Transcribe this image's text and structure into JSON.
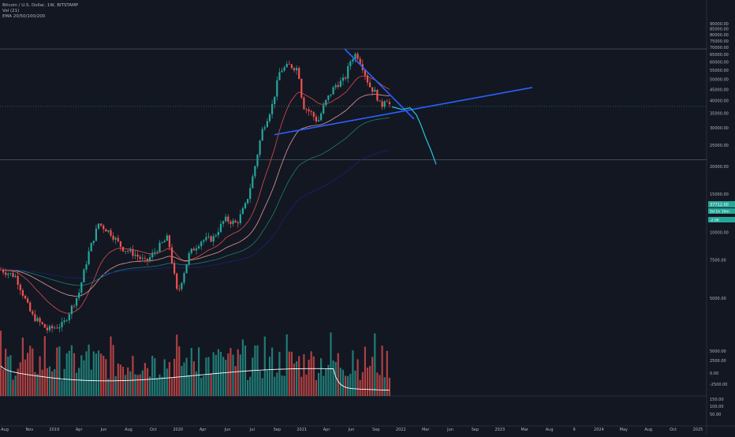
{
  "legend": {
    "line1": "Bitcoin / U.S. Dollar, 1W, BITSTAMP",
    "line2": "Vol (21)",
    "line3": "EMA 20/50/100/200"
  },
  "price_badges": {
    "last_price": "37712.00",
    "countdown": "5d 1h 19m",
    "volume_badge": "-2.0K"
  },
  "chart_data": {
    "type": "candlestick",
    "price_scale": "log",
    "ylim": [
      3000,
      90000
    ],
    "price_ticks": [
      "90000.00",
      "85000.00",
      "80000.00",
      "75000.00",
      "70000.00",
      "65000.00",
      "60000.00",
      "55000.00",
      "50000.00",
      "45000.00",
      "40000.00",
      "35000.00",
      "30000.00",
      "25000.00",
      "20000.00",
      "15000.00",
      "12500.00",
      "10000.00",
      "7500.00",
      "5000.00"
    ],
    "indicator_ticks": [
      "5000.00",
      "2500.00",
      "0.00",
      "-2500.00"
    ],
    "bottom_ticks": [
      "150.00",
      "100.00",
      "50.00"
    ],
    "x_ticks": [
      "Aug",
      "Nov",
      "2019",
      "Apr",
      "Jun",
      "Aug",
      "Oct",
      "2020",
      "Apr",
      "Jun",
      "Jul",
      "Sep",
      "2021",
      "Apr",
      "Jun",
      "Sep",
      "2022",
      "Mar",
      "Jun",
      "Sep",
      "2023",
      "Mar",
      "Aug",
      "9",
      "2024",
      "May",
      "Aug",
      "Oct",
      "2025"
    ],
    "price_anchors": [
      {
        "x": 0,
        "price": 6800
      },
      {
        "x": 20,
        "price": 6300
      },
      {
        "x": 40,
        "price": 4200
      },
      {
        "x": 60,
        "price": 3600
      },
      {
        "x": 80,
        "price": 3800
      },
      {
        "x": 100,
        "price": 5300
      },
      {
        "x": 112,
        "price": 8000
      },
      {
        "x": 125,
        "price": 11000
      },
      {
        "x": 140,
        "price": 10000
      },
      {
        "x": 155,
        "price": 8500
      },
      {
        "x": 170,
        "price": 8000
      },
      {
        "x": 185,
        "price": 7300
      },
      {
        "x": 200,
        "price": 8500
      },
      {
        "x": 213,
        "price": 9500
      },
      {
        "x": 225,
        "price": 5200
      },
      {
        "x": 240,
        "price": 8000
      },
      {
        "x": 255,
        "price": 9200
      },
      {
        "x": 270,
        "price": 9400
      },
      {
        "x": 285,
        "price": 11500
      },
      {
        "x": 300,
        "price": 11000
      },
      {
        "x": 312,
        "price": 13500
      },
      {
        "x": 322,
        "price": 19000
      },
      {
        "x": 332,
        "price": 29000
      },
      {
        "x": 345,
        "price": 38000
      },
      {
        "x": 355,
        "price": 55000
      },
      {
        "x": 367,
        "price": 58000
      },
      {
        "x": 378,
        "price": 56000
      },
      {
        "x": 384,
        "price": 38000
      },
      {
        "x": 395,
        "price": 35000
      },
      {
        "x": 403,
        "price": 32000
      },
      {
        "x": 412,
        "price": 39000
      },
      {
        "x": 425,
        "price": 47000
      },
      {
        "x": 437,
        "price": 50000
      },
      {
        "x": 445,
        "price": 62000
      },
      {
        "x": 452,
        "price": 66000
      },
      {
        "x": 460,
        "price": 57000
      },
      {
        "x": 468,
        "price": 47000
      },
      {
        "x": 477,
        "price": 43000
      },
      {
        "x": 483,
        "price": 37000
      },
      {
        "x": 489,
        "price": 42000
      },
      {
        "x": 495,
        "price": 37712
      }
    ],
    "overlays": {
      "descending_trendline": [
        {
          "x": 437,
          "price": 69000
        },
        {
          "x": 525,
          "price": 33000
        }
      ],
      "ascending_trendline": [
        {
          "x": 348,
          "price": 28000
        },
        {
          "x": 675,
          "price": 46000
        }
      ],
      "projection_path": [
        {
          "x": 497,
          "price": 37500
        },
        {
          "x": 510,
          "price": 36500
        },
        {
          "x": 520,
          "price": 37200
        },
        {
          "x": 528,
          "price": 34500
        },
        {
          "x": 533,
          "price": 31500
        },
        {
          "x": 540,
          "price": 27000
        },
        {
          "x": 547,
          "price": 23500
        },
        {
          "x": 553,
          "price": 20500
        }
      ],
      "horizontal_levels": [
        69000,
        21500
      ]
    },
    "colors": {
      "background": "#131722",
      "up": "#26a69a",
      "down": "#ef5350",
      "trendline": "#2962ff",
      "projection": "#26c6da",
      "ema20": "#ef5350",
      "ema50": "#f7a8a8",
      "ema100": "#1d8b79",
      "ema200": "#1a237e",
      "indicator_line": "#ffffff"
    }
  }
}
